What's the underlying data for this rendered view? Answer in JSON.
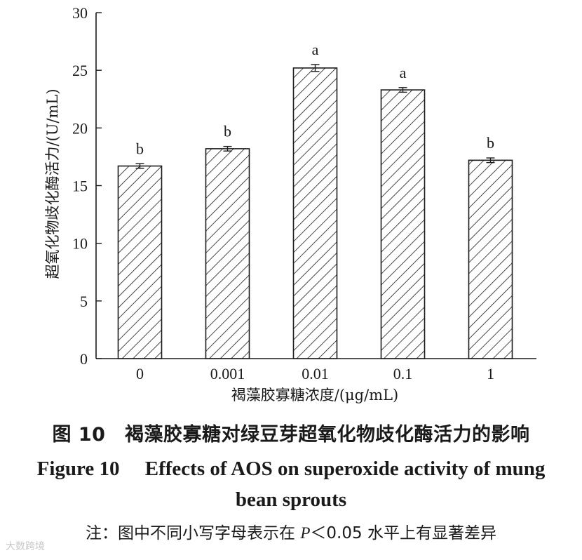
{
  "chart_data": {
    "type": "bar",
    "categories": [
      "0",
      "0.001",
      "0.01",
      "0.1",
      "1"
    ],
    "values": [
      16.7,
      18.2,
      25.2,
      23.3,
      17.2
    ],
    "errors": [
      0.2,
      0.2,
      0.3,
      0.2,
      0.2
    ],
    "significance_letters": [
      "b",
      "b",
      "a",
      "a",
      "b"
    ],
    "xlabel": "褐藻胶寡糖浓度/(μg/mL)",
    "ylabel": "超氧化物歧化酶活力/(U/mL)",
    "ylim": [
      0,
      30
    ],
    "yticks": [
      0,
      5,
      10,
      15,
      20,
      25,
      30
    ],
    "bar_fill": "hatched diagonal",
    "grid": false
  },
  "caption": {
    "zh": "图 10　褐藻胶寡糖对绿豆芽超氧化物歧化酶活力的影响",
    "en_line1": "Figure 10　 Effects of AOS on superoxide activity of mung",
    "en_line2": "bean sprouts"
  },
  "note": {
    "prefix": "注：图中不同小写字母表示在 ",
    "p": "P",
    "suffix": "＜0.05 水平上有显著差异"
  },
  "watermark": "大数跨境",
  "colors": {
    "ink": "#1a1a1a",
    "background": "#ffffff",
    "watermark": "#c8c8c8"
  }
}
